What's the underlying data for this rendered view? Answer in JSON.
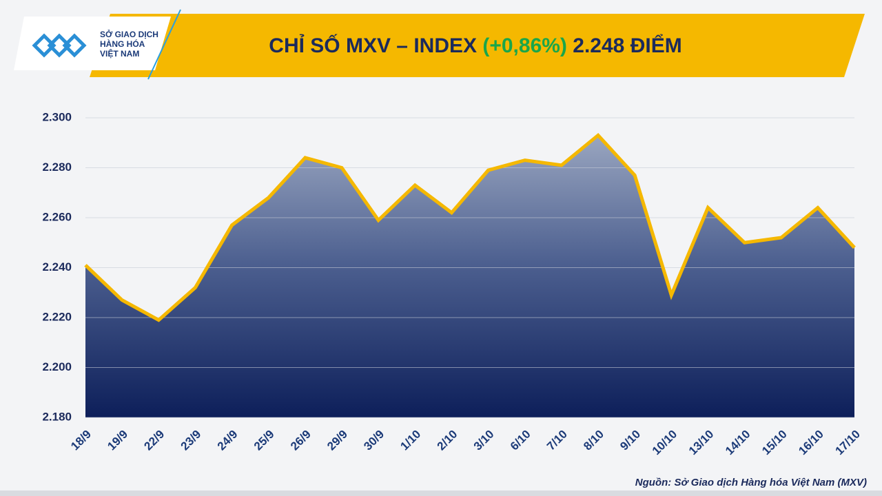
{
  "logo": [
    "SỞ GIAO DỊCH",
    "HÀNG HÓA",
    "VIỆT NAM"
  ],
  "chart_data": {
    "type": "area-line",
    "title": [
      "CHỈ SỐ MXV – INDEX",
      "(+0,86%)",
      "2.248 ĐIỂM"
    ],
    "source": "Nguồn: Sở Giao dịch Hàng hóa Việt Nam (MXV)",
    "categories": [
      "18/9",
      "19/9",
      "22/9",
      "23/9",
      "24/9",
      "25/9",
      "26/9",
      "29/9",
      "30/9",
      "1/10",
      "2/10",
      "3/10",
      "6/10",
      "7/10",
      "8/10",
      "9/10",
      "10/10",
      "13/10",
      "14/10",
      "15/10",
      "16/10",
      "17/10"
    ],
    "values": [
      2241,
      2227,
      2219,
      2232,
      2257,
      2268,
      2284,
      2280,
      2259,
      2273,
      2262,
      2279,
      2283,
      2281,
      2293,
      2277,
      2229,
      2264,
      2250,
      2252,
      2264,
      2248
    ],
    "color": "#f5b800",
    "ylim": [
      2180,
      2300
    ],
    "yticks": [
      {
        "value": 2180,
        "label": "2.180"
      },
      {
        "value": 2200,
        "label": "2.200"
      },
      {
        "value": 2220,
        "label": "2.220"
      },
      {
        "value": 2240,
        "label": "2.240"
      },
      {
        "value": 2260,
        "label": "2.260"
      },
      {
        "value": 2280,
        "label": "2.280"
      },
      {
        "value": 2300,
        "label": "2.300"
      }
    ],
    "grid": true
  }
}
